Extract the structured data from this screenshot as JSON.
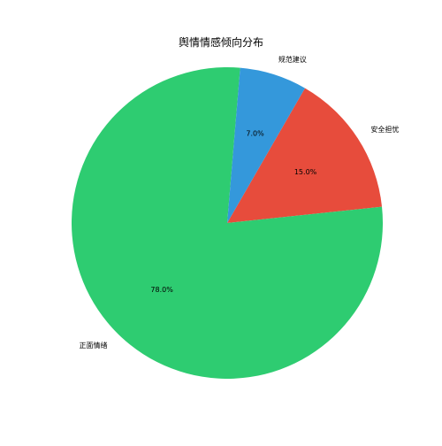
{
  "chart_data": {
    "type": "pie",
    "title": "舆情情感倾向分布",
    "slices": [
      {
        "label": "安全担忧",
        "value": 15.0,
        "pct_label": "15.0%",
        "color": "#e74c3c"
      },
      {
        "label": "正面情绪",
        "value": 78.0,
        "pct_label": "78.0%",
        "color": "#2ecc71"
      },
      {
        "label": "规范建议",
        "value": 7.0,
        "pct_label": "7.0%",
        "color": "#3498db"
      }
    ],
    "start_angle_deg": 60,
    "direction": "clockwise",
    "legend": "none"
  }
}
